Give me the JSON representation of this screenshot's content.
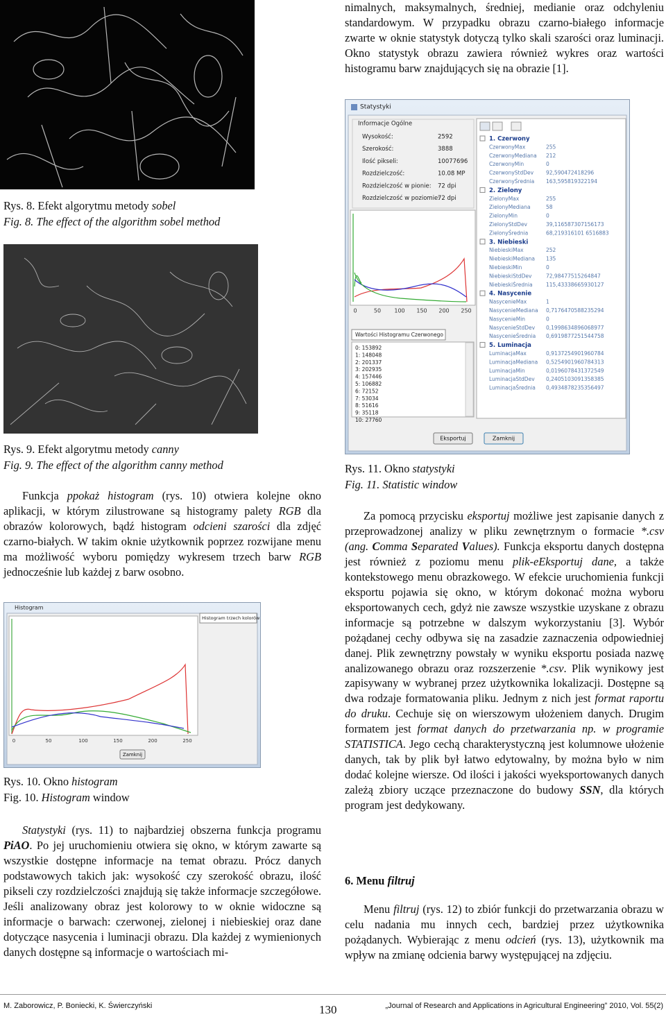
{
  "left": {
    "fig8": {
      "caption_pl": [
        "Rys. 8. Efekt algorytmu metody ",
        "sobel"
      ],
      "caption_en": "Fig. 8. The effect of the algorithm sobel method"
    },
    "fig9": {
      "caption_pl": [
        "Rys. 9. Efekt algorytmu metody ",
        "canny"
      ],
      "caption_en": "Fig. 9. The effect of the algorithm canny method"
    },
    "p1": [
      "Funkcja ",
      "ppokaż histogram",
      " (rys. 10) otwiera kolejne okno aplikacji, w którym zilustrowane są histogramy palety ",
      "RGB",
      " dla obrazów kolorowych, bądź histogram ",
      "odcieni szarości",
      " dla zdjęć czarno-białych. W takim oknie użytkownik poprzez rozwijane menu ma możliwość wyboru pomiędzy wykresem trzech barw ",
      "RGB",
      " jednocześnie lub każdej z barw osobno."
    ],
    "fig10": {
      "window": {
        "title": "Histogram",
        "dropdown": "Histogram trzech kolorów",
        "ticks": [
          "0",
          "50",
          "100",
          "150",
          "200",
          "250"
        ],
        "button": "Zamknij"
      },
      "caption_pl": [
        "Rys. 10. Okno ",
        "histogram"
      ],
      "caption_en": [
        "Fig. 10. ",
        "Histogram",
        " window"
      ]
    },
    "p2": [
      "Statystyki",
      " (rys. 11) to najbardziej obszerna funkcja programu ",
      "PiAO",
      ". Po jej uruchomieniu otwiera się okno, w którym zawarte są wszystkie dostępne informacje na temat obrazu. Prócz danych podstawowych takich jak: wysokość czy szerokość obrazu, ilość pikseli czy rozdzielczości znajdują się także informacje szczegółowe. Jeśli analizowany obraz jest kolorowy to w oknie widoczne są informacje o barwach: czerwonej, zielonej i niebieskiej oraz dane dotyczące nasycenia i luminacji obrazu. Dla każdej z wymienionych danych dostępne są informacje o wartościach mi-"
    ]
  },
  "right": {
    "p0": "nimalnych, maksymalnych, średniej, medianie oraz odchyleniu standardowym. W przypadku obrazu czarno-białego informacje zwarte w oknie statystyk dotyczą tylko skali szarości oraz luminacji. Okno statystyk obrazu zawiera również wykres oraz wartości histogramu barw znajdujących się na obrazie [1].",
    "fig11": {
      "window": {
        "title": "Statystyki",
        "group": "Informacje Ogólne",
        "info": [
          [
            "Wysokość:",
            "2592"
          ],
          [
            "Szerokość:",
            "3888"
          ],
          [
            "Ilość pikseli:",
            "10077696"
          ],
          [
            "Rozdzielczość:",
            "10.08 MP"
          ],
          [
            "Rozdzielczość w pionie:",
            "72 dpi"
          ],
          [
            "Rozdzielczość w poziomie:",
            "72 dpi"
          ]
        ],
        "tree": [
          {
            "name": "1. Czerwony",
            "rows": [
              [
                "CzerwonyMax",
                "255"
              ],
              [
                "CzerwonyMediana",
                "212"
              ],
              [
                "CzerwonyMin",
                "0"
              ],
              [
                "CzerwonyStdDev",
                "92,590472418296"
              ],
              [
                "CzerwonyŚrednia",
                "163,595819322194"
              ]
            ]
          },
          {
            "name": "2. Zielony",
            "rows": [
              [
                "ZielonyMax",
                "255"
              ],
              [
                "ZielonyMediana",
                "58"
              ],
              [
                "ZielonyMin",
                "0"
              ],
              [
                "ZielonyStdDev",
                "39,116587307156173"
              ],
              [
                "ZielonyŚrednia",
                "68,219316101 6516883"
              ]
            ]
          },
          {
            "name": "3. Niebieski",
            "rows": [
              [
                "NiebieskiMax",
                "252"
              ],
              [
                "NiebieskiMediana",
                "135"
              ],
              [
                "NiebieskiMin",
                "0"
              ],
              [
                "NiebieskiStdDev",
                "72,98477515264847"
              ],
              [
                "NiebieskiŚrednia",
                "115,43338665930127"
              ]
            ]
          },
          {
            "name": "4. Nasycenie",
            "rows": [
              [
                "NasycenieMax",
                "1"
              ],
              [
                "NasycenieMediana",
                "0,7176470588235294"
              ],
              [
                "NasycenieMin",
                "0"
              ],
              [
                "NasycenieStdDev",
                "0,1998634896068977"
              ],
              [
                "NasycenieŚrednia",
                "0,6919877251544758"
              ]
            ]
          },
          {
            "name": "5. Luminacja",
            "rows": [
              [
                "LuminacjaMax",
                "0,9137254901960784"
              ],
              [
                "LuminacjaMediana",
                "0,5254901960784313"
              ],
              [
                "LuminacjaMin",
                "0,0196078431372549"
              ],
              [
                "LuminacjaStdDev",
                "0,2405103091358385"
              ],
              [
                "LuminacjaŚrednia",
                "0,4934878235356497"
              ]
            ]
          }
        ],
        "ticks": [
          "0",
          "50",
          "100",
          "150",
          "200",
          "250"
        ],
        "dropdown": "Wartości Histogramu Czerwonego",
        "list": [
          "0: 153892",
          "1: 148048",
          "2: 201337",
          "3: 202935",
          "4: 157446",
          "5: 106882",
          "6: 72152",
          "7: 53034",
          "8: 51616",
          "9: 35118",
          "10: 27760"
        ],
        "buttons": [
          "Eksportuj",
          "Zamknij"
        ]
      },
      "caption_pl": [
        "Rys. 11. Okno ",
        "statystyki"
      ],
      "caption_en": "Fig. 11. Statistic window"
    },
    "p1": [
      "Za pomocą przycisku ",
      "eksportuj",
      " możliwe jest zapisanie danych z przeprowadzonej analizy w pliku zewnętrznym o formacie ",
      "*.csv (ang. ",
      "C",
      "omma ",
      "S",
      "eparated ",
      "V",
      "alues).",
      " Funkcja eksportu danych dostępna jest również z poziomu menu ",
      "plik-eEksportuj dane,",
      " a także kontekstowego menu obrazkowego. W efekcie uruchomienia funkcji eksportu pojawia się okno, w którym dokonać można wyboru eksportowanych cech, gdyż nie zawsze wszystkie uzyskane z obrazu informacje są potrzebne w dalszym wykorzystaniu [3]. Wybór pożądanej cechy odbywa się na zasadzie zaznaczenia odpowiedniej danej. Plik zewnętrzny powstały w wyniku eksportu posiada nazwę analizowanego obrazu oraz rozszerzenie ",
      "*.csv",
      ". Plik wynikowy jest zapisywany w wybranej przez użytkownika lokalizacji. Dostępne są dwa rodzaje formatowania pliku. Jednym z nich jest ",
      "format raportu do druku",
      ". Cechuje się on wierszowym ułożeniem danych. Drugim formatem jest ",
      "format danych do przetwarzania np. w programie STATISTICA",
      ". Jego cechą charakterystyczną jest kolumnowe ułożenie danych, tak by plik był łatwo edytowalny, by można było w nim dodać kolejne wiersze. Od ilości i jakości wyeksportowanych danych zależą zbiory uczące przeznaczone do budowy ",
      "SSN",
      ", dla których program jest dedykowany."
    ],
    "heading": [
      "6. Menu ",
      "filtruj"
    ],
    "p2": [
      "Menu ",
      "filtruj",
      " (rys. 12) to zbiór funkcji do przetwarzania obrazu w celu nadania mu innych cech, bardziej przez użytkownika pożądanych. Wybierając z menu ",
      "odcień",
      " (rys. 13), użytkownik ma wpływ na zmianę odcienia barwy występującej na zdjęciu."
    ]
  },
  "footer": {
    "authors": "M. Zaborowicz, P. Boniecki, K. Świerczyński",
    "page": "130",
    "journal": "„Journal of Research and Applications in Agricultural Engineering” 2010, Vol. 55(2)"
  }
}
